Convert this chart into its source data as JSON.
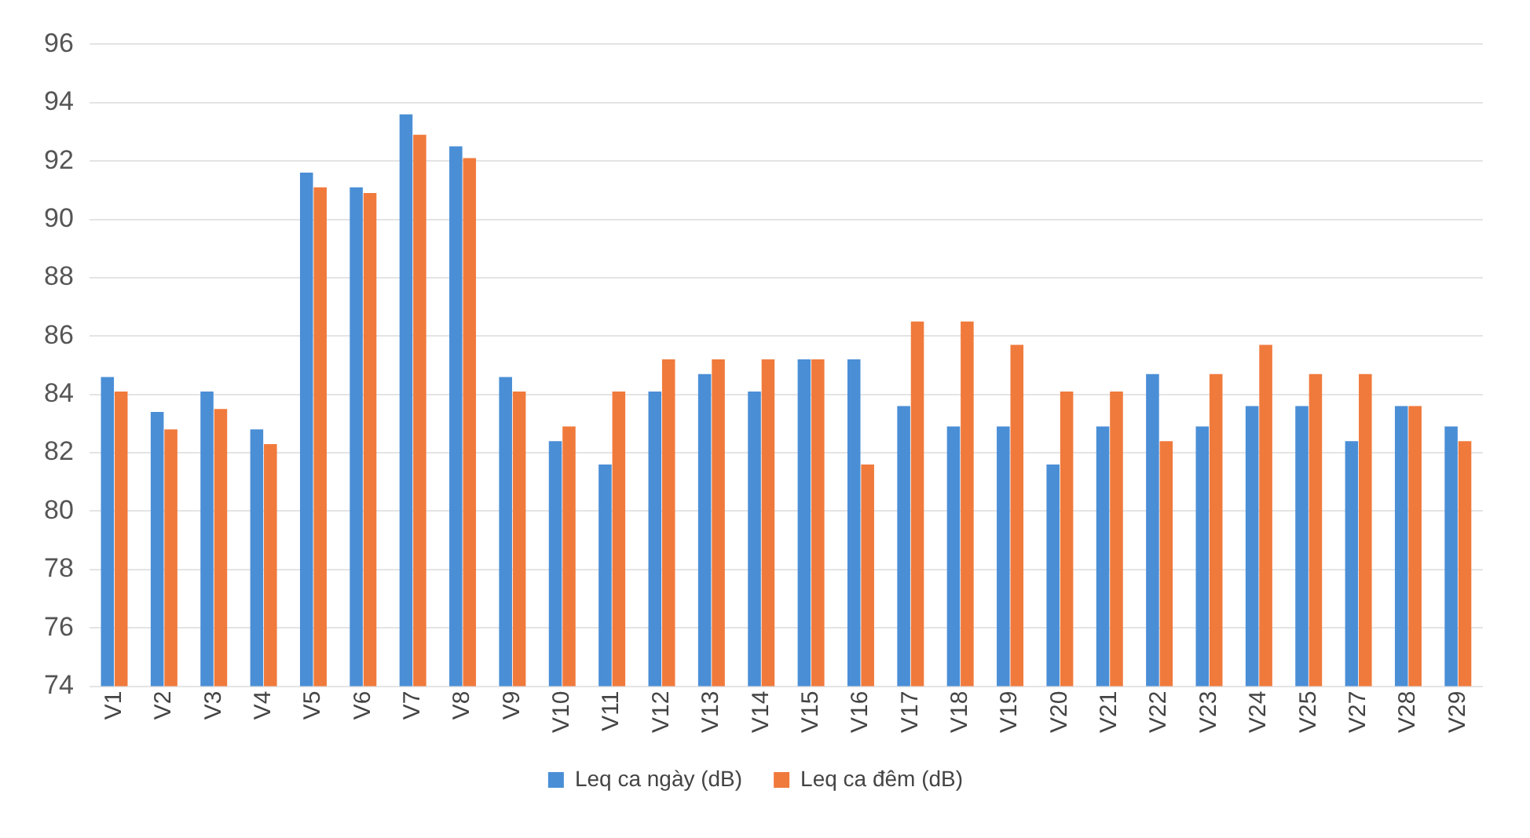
{
  "chart_data": {
    "type": "bar",
    "categories": [
      "V1",
      "V2",
      "V3",
      "V4",
      "V5",
      "V6",
      "V7",
      "V8",
      "V9",
      "V10",
      "V11",
      "V12",
      "V13",
      "V14",
      "V15",
      "V16",
      "V17",
      "V18",
      "V19",
      "V20",
      "V21",
      "V22",
      "V23",
      "V24",
      "V25",
      "V27",
      "V28",
      "V29"
    ],
    "series": [
      {
        "name": "Leq ca ngày (dB)",
        "color": "#4a8ed6",
        "values": [
          84.6,
          83.4,
          84.1,
          82.8,
          91.6,
          91.1,
          93.6,
          92.5,
          84.6,
          82.4,
          81.6,
          84.1,
          84.7,
          84.1,
          85.2,
          85.2,
          83.6,
          82.9,
          82.9,
          81.6,
          82.9,
          84.7,
          82.9,
          83.6,
          83.6,
          82.4,
          83.6,
          82.9
        ]
      },
      {
        "name": "Leq ca đêm (dB)",
        "color": "#f07a3c",
        "values": [
          84.1,
          82.8,
          83.5,
          82.3,
          91.1,
          90.9,
          92.9,
          92.1,
          84.1,
          82.9,
          84.1,
          85.2,
          85.2,
          85.2,
          85.2,
          81.6,
          86.5,
          86.5,
          85.7,
          84.1,
          84.1,
          82.4,
          84.7,
          85.7,
          84.7,
          84.7,
          83.6,
          82.4
        ]
      }
    ],
    "ylim": [
      74,
      96
    ],
    "yticks": [
      74,
      76,
      78,
      80,
      82,
      84,
      86,
      88,
      90,
      92,
      94,
      96
    ],
    "grid": "y",
    "legend": "bottom"
  }
}
